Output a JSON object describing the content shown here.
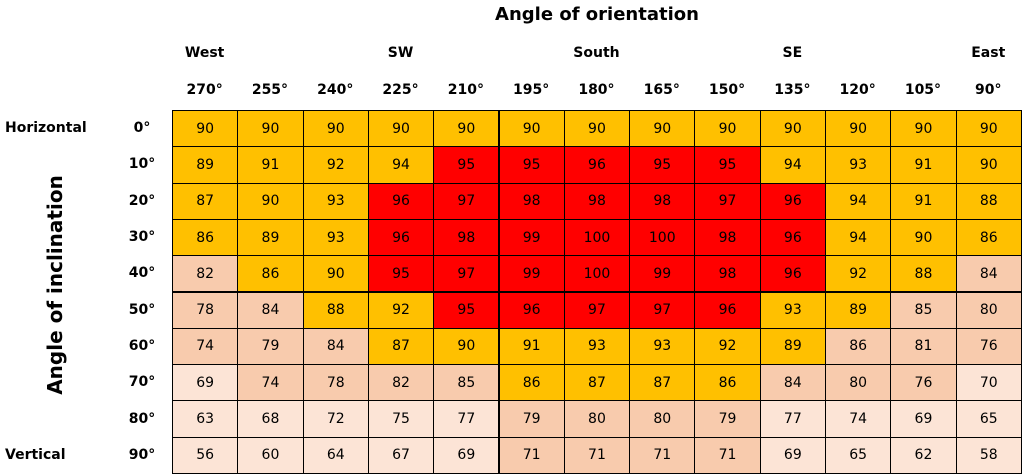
{
  "title": "Angle of orientation",
  "vertical_label": "Angle of inclination",
  "directions": [
    "West",
    null,
    null,
    "SW",
    null,
    null,
    "South",
    null,
    null,
    "SE",
    null,
    null,
    "East"
  ],
  "columns": [
    "270°",
    "255°",
    "240°",
    "225°",
    "210°",
    "195°",
    "180°",
    "165°",
    "150°",
    "135°",
    "120°",
    "105°",
    "90°"
  ],
  "rows": [
    {
      "group": "Horizontal",
      "angle": "0°",
      "values": [
        90,
        90,
        90,
        90,
        90,
        90,
        90,
        90,
        90,
        90,
        90,
        90,
        90
      ],
      "colors": [
        "#ffc000",
        "#ffc000",
        "#ffc000",
        "#ffc000",
        "#ffc000",
        "#ffc000",
        "#ffc000",
        "#ffc000",
        "#ffc000",
        "#ffc000",
        "#ffc000",
        "#ffc000",
        "#ffc000"
      ]
    },
    {
      "angle": "10°",
      "values": [
        89,
        91,
        92,
        94,
        95,
        95,
        96,
        95,
        95,
        94,
        93,
        91,
        90
      ],
      "colors": [
        "#ffc000",
        "#ffc000",
        "#ffc000",
        "#ffc000",
        "#ff0000",
        "#ff0000",
        "#ff0000",
        "#ff0000",
        "#ff0000",
        "#ffc000",
        "#ffc000",
        "#ffc000",
        "#ffc000"
      ]
    },
    {
      "angle": "20°",
      "values": [
        87,
        90,
        93,
        96,
        97,
        98,
        98,
        98,
        97,
        96,
        94,
        91,
        88
      ],
      "colors": [
        "#ffc000",
        "#ffc000",
        "#ffc000",
        "#ff0000",
        "#ff0000",
        "#ff0000",
        "#ff0000",
        "#ff0000",
        "#ff0000",
        "#ff0000",
        "#ffc000",
        "#ffc000",
        "#ffc000"
      ]
    },
    {
      "angle": "30°",
      "values": [
        86,
        89,
        93,
        96,
        98,
        99,
        100,
        100,
        98,
        96,
        94,
        90,
        86
      ],
      "colors": [
        "#ffc000",
        "#ffc000",
        "#ffc000",
        "#ff0000",
        "#ff0000",
        "#ff0000",
        "#ff0000",
        "#ff0000",
        "#ff0000",
        "#ff0000",
        "#ffc000",
        "#ffc000",
        "#ffc000"
      ]
    },
    {
      "angle": "40°",
      "values": [
        82,
        86,
        90,
        95,
        97,
        99,
        100,
        99,
        98,
        96,
        92,
        88,
        84
      ],
      "colors": [
        "#f8cbad",
        "#ffc000",
        "#ffc000",
        "#ff0000",
        "#ff0000",
        "#ff0000",
        "#ff0000",
        "#ff0000",
        "#ff0000",
        "#ff0000",
        "#ffc000",
        "#ffc000",
        "#f8cbad"
      ]
    },
    {
      "angle": "50°",
      "values": [
        78,
        84,
        88,
        92,
        95,
        96,
        97,
        97,
        96,
        93,
        89,
        85,
        80
      ],
      "colors": [
        "#f8cbad",
        "#f8cbad",
        "#ffc000",
        "#ffc000",
        "#ff0000",
        "#ff0000",
        "#ff0000",
        "#ff0000",
        "#ff0000",
        "#ffc000",
        "#ffc000",
        "#f8cbad",
        "#f8cbad"
      ]
    },
    {
      "angle": "60°",
      "values": [
        74,
        79,
        84,
        87,
        90,
        91,
        93,
        93,
        92,
        89,
        86,
        81,
        76
      ],
      "colors": [
        "#f8cbad",
        "#f8cbad",
        "#f8cbad",
        "#ffc000",
        "#ffc000",
        "#ffc000",
        "#ffc000",
        "#ffc000",
        "#ffc000",
        "#ffc000",
        "#f8cbad",
        "#f8cbad",
        "#f8cbad"
      ]
    },
    {
      "angle": "70°",
      "values": [
        69,
        74,
        78,
        82,
        85,
        86,
        87,
        87,
        86,
        84,
        80,
        76,
        70
      ],
      "colors": [
        "#fce4d6",
        "#f8cbad",
        "#f8cbad",
        "#f8cbad",
        "#f8cbad",
        "#ffc000",
        "#ffc000",
        "#ffc000",
        "#ffc000",
        "#f8cbad",
        "#f8cbad",
        "#f8cbad",
        "#fce4d6"
      ]
    },
    {
      "angle": "80°",
      "values": [
        63,
        68,
        72,
        75,
        77,
        79,
        80,
        80,
        79,
        77,
        74,
        69,
        65
      ],
      "colors": [
        "#fce4d6",
        "#fce4d6",
        "#fce4d6",
        "#fce4d6",
        "#fce4d6",
        "#f8cbad",
        "#f8cbad",
        "#f8cbad",
        "#f8cbad",
        "#fce4d6",
        "#fce4d6",
        "#fce4d6",
        "#fce4d6"
      ]
    },
    {
      "group": "Vertical",
      "angle": "90°",
      "values": [
        56,
        60,
        64,
        67,
        69,
        71,
        71,
        71,
        71,
        69,
        65,
        62,
        58
      ],
      "colors": [
        "#fce4d6",
        "#fce4d6",
        "#fce4d6",
        "#fce4d6",
        "#fce4d6",
        "#f8cbad",
        "#f8cbad",
        "#f8cbad",
        "#f8cbad",
        "#fce4d6",
        "#fce4d6",
        "#fce4d6",
        "#fce4d6"
      ]
    }
  ]
}
